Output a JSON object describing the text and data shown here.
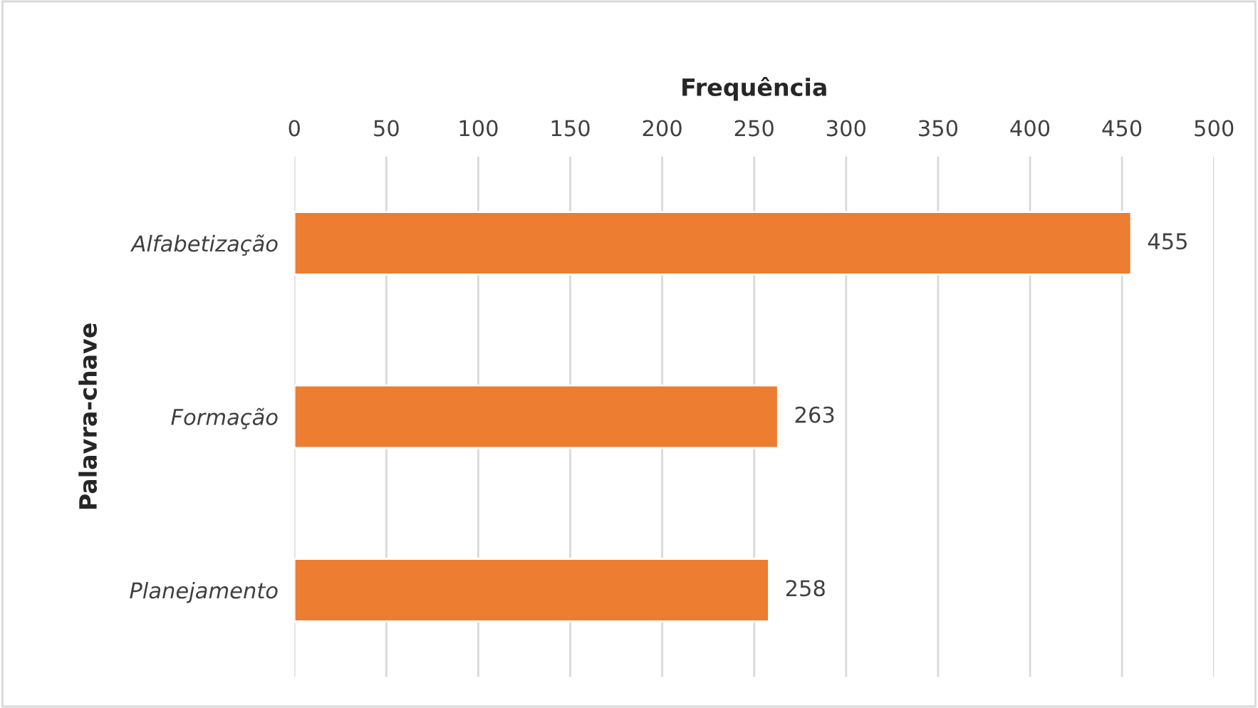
{
  "chart_data": {
    "type": "bar",
    "orientation": "horizontal",
    "xlabel": "Frequência",
    "ylabel": "Palavra-chave",
    "categories": [
      "Alfabetização",
      "Formação",
      "Planejamento"
    ],
    "values": [
      455,
      263,
      258
    ],
    "color": "#ed7d31",
    "xlim": [
      0,
      500
    ],
    "xticks": [
      0,
      50,
      100,
      150,
      200,
      250,
      300,
      350,
      400,
      450,
      500
    ],
    "grid": "x",
    "data_labels": true
  }
}
